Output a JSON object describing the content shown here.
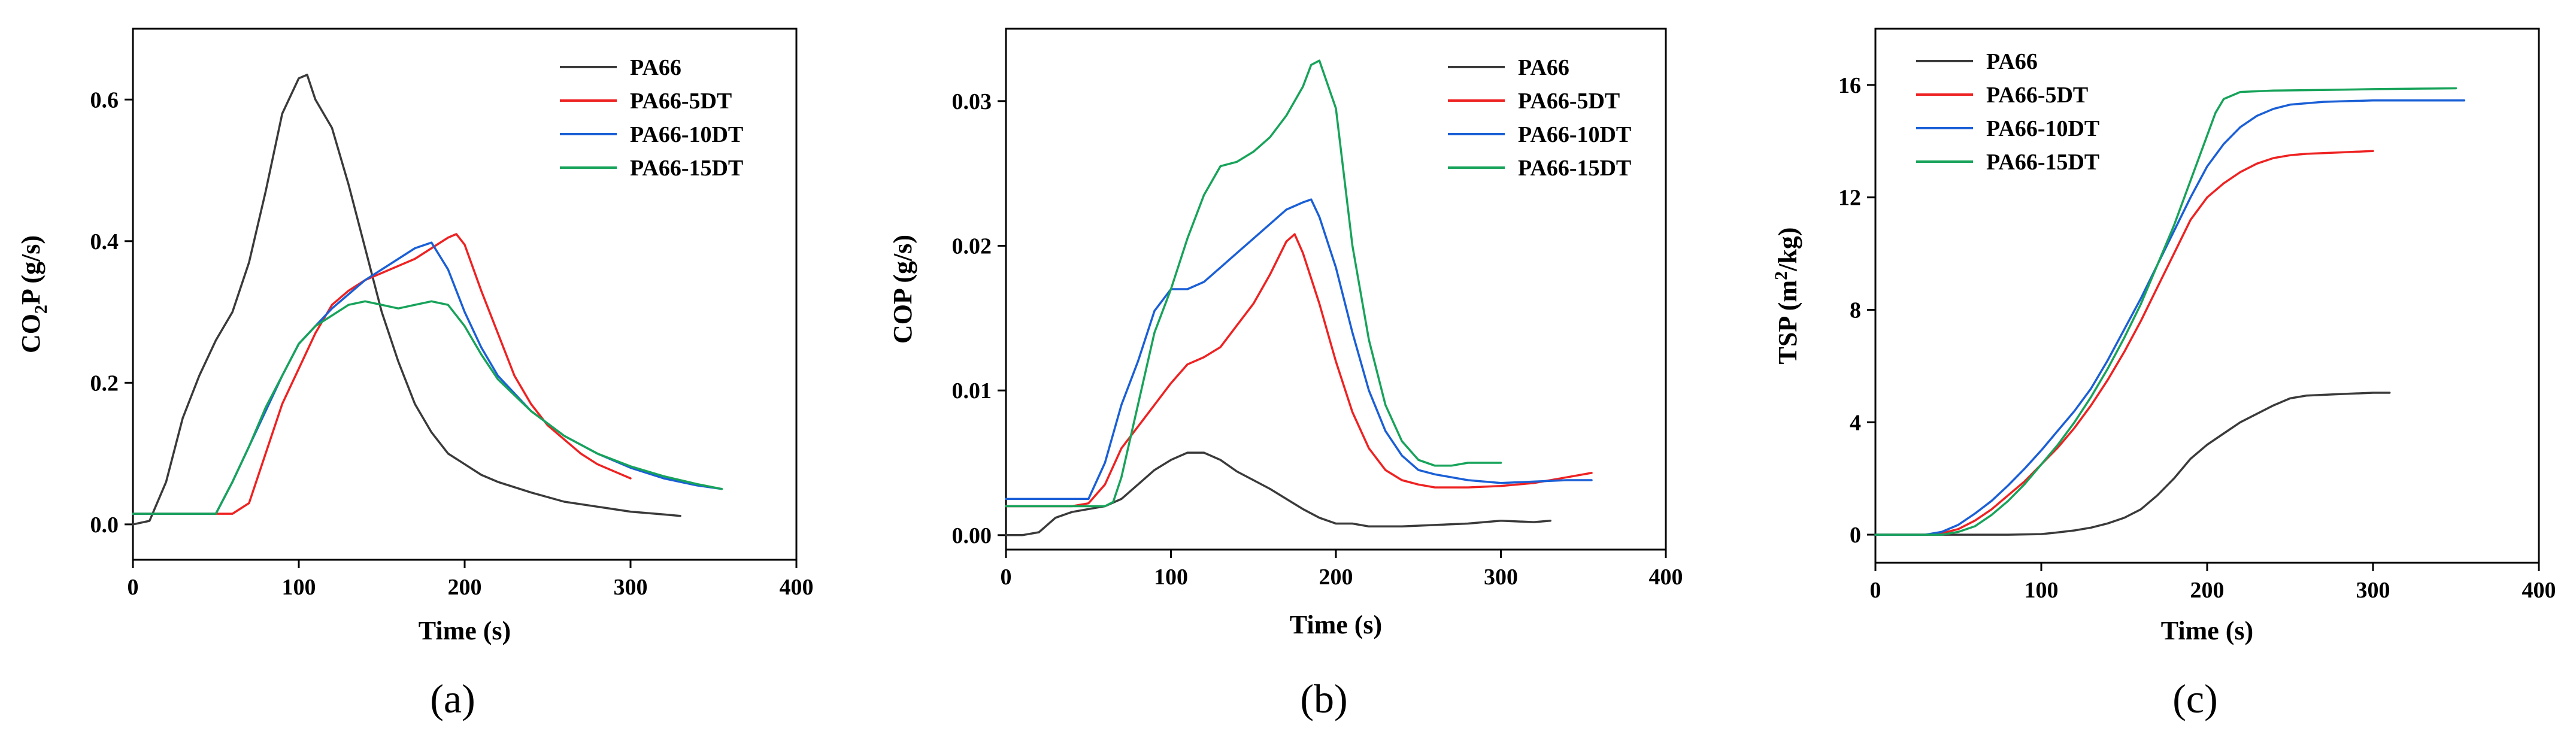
{
  "colors": {
    "PA66": "#3a3a3a",
    "PA66-5DT": "#ee2222",
    "PA66-10DT": "#1a5fd6",
    "PA66-15DT": "#17a35a"
  },
  "chart_data": [
    {
      "type": "line",
      "panel_label": "(a)",
      "xlabel": "Time (s)",
      "ylabel_main": "CO",
      "ylabel_sub": "2",
      "ylabel_tail": "P (g/s)",
      "xlim": [
        0,
        400
      ],
      "ylim": [
        -0.05,
        0.7
      ],
      "xticks": [
        0,
        100,
        200,
        300,
        400
      ],
      "yticks": [
        0.0,
        0.2,
        0.4,
        0.6
      ],
      "ytick_labels": [
        "0.0",
        "0.2",
        "0.4",
        "0.6"
      ],
      "legend": [
        "PA66",
        "PA66-5DT",
        "PA66-10DT",
        "PA66-15DT"
      ],
      "legend_position": "top-right",
      "series": [
        {
          "name": "PA66",
          "x": [
            0,
            10,
            20,
            30,
            40,
            50,
            60,
            70,
            80,
            90,
            100,
            105,
            110,
            120,
            130,
            140,
            150,
            160,
            170,
            180,
            190,
            200,
            210,
            220,
            240,
            260,
            280,
            300,
            320,
            330
          ],
          "y": [
            0.0,
            0.005,
            0.06,
            0.15,
            0.21,
            0.26,
            0.3,
            0.37,
            0.47,
            0.58,
            0.63,
            0.635,
            0.6,
            0.56,
            0.48,
            0.39,
            0.3,
            0.23,
            0.17,
            0.13,
            0.1,
            0.085,
            0.07,
            0.06,
            0.045,
            0.032,
            0.025,
            0.018,
            0.014,
            0.012
          ]
        },
        {
          "name": "PA66-5DT",
          "x": [
            0,
            60,
            70,
            80,
            90,
            100,
            110,
            120,
            130,
            140,
            150,
            160,
            170,
            180,
            190,
            195,
            200,
            210,
            220,
            230,
            240,
            250,
            260,
            270,
            280,
            290,
            300
          ],
          "y": [
            0.015,
            0.015,
            0.03,
            0.1,
            0.17,
            0.22,
            0.27,
            0.31,
            0.33,
            0.345,
            0.355,
            0.365,
            0.375,
            0.39,
            0.405,
            0.41,
            0.395,
            0.33,
            0.27,
            0.21,
            0.17,
            0.14,
            0.12,
            0.1,
            0.085,
            0.075,
            0.065
          ]
        },
        {
          "name": "PA66-10DT",
          "x": [
            0,
            50,
            60,
            70,
            80,
            90,
            100,
            110,
            120,
            130,
            140,
            150,
            160,
            170,
            180,
            190,
            200,
            210,
            220,
            240,
            260,
            280,
            300,
            320,
            340,
            355
          ],
          "y": [
            0.015,
            0.015,
            0.06,
            0.11,
            0.16,
            0.21,
            0.255,
            0.28,
            0.305,
            0.325,
            0.345,
            0.36,
            0.375,
            0.39,
            0.398,
            0.36,
            0.3,
            0.25,
            0.21,
            0.16,
            0.125,
            0.1,
            0.08,
            0.065,
            0.055,
            0.05
          ]
        },
        {
          "name": "PA66-15DT",
          "x": [
            0,
            50,
            60,
            70,
            80,
            90,
            100,
            110,
            120,
            130,
            140,
            150,
            160,
            170,
            180,
            190,
            200,
            210,
            220,
            240,
            260,
            280,
            300,
            320,
            340,
            355
          ],
          "y": [
            0.015,
            0.015,
            0.06,
            0.11,
            0.165,
            0.21,
            0.255,
            0.28,
            0.295,
            0.31,
            0.315,
            0.31,
            0.305,
            0.31,
            0.315,
            0.31,
            0.28,
            0.24,
            0.205,
            0.16,
            0.125,
            0.1,
            0.082,
            0.068,
            0.057,
            0.05
          ]
        }
      ]
    },
    {
      "type": "line",
      "panel_label": "(b)",
      "xlabel": "Time (s)",
      "ylabel_main": "COP (g/s)",
      "ylabel_sub": "",
      "ylabel_tail": "",
      "xlim": [
        0,
        400
      ],
      "ylim": [
        -0.001,
        0.035
      ],
      "xticks": [
        0,
        100,
        200,
        300,
        400
      ],
      "yticks": [
        0.0,
        0.01,
        0.02,
        0.03
      ],
      "ytick_labels": [
        "0.00",
        "0.01",
        "0.02",
        "0.03"
      ],
      "legend": [
        "PA66",
        "PA66-5DT",
        "PA66-10DT",
        "PA66-15DT"
      ],
      "legend_position": "top-right",
      "series": [
        {
          "name": "PA66",
          "x": [
            0,
            10,
            20,
            30,
            40,
            50,
            60,
            70,
            80,
            90,
            100,
            110,
            120,
            130,
            140,
            150,
            160,
            170,
            180,
            190,
            200,
            210,
            220,
            240,
            260,
            280,
            300,
            320,
            330
          ],
          "y": [
            0.0,
            0.0,
            0.0002,
            0.0012,
            0.0016,
            0.0018,
            0.002,
            0.0025,
            0.0035,
            0.0045,
            0.0052,
            0.0057,
            0.0057,
            0.0052,
            0.0044,
            0.0038,
            0.0032,
            0.0025,
            0.0018,
            0.0012,
            0.0008,
            0.0008,
            0.0006,
            0.0006,
            0.0007,
            0.0008,
            0.001,
            0.0009,
            0.001
          ]
        },
        {
          "name": "PA66-5DT",
          "x": [
            0,
            20,
            40,
            50,
            60,
            70,
            80,
            90,
            100,
            110,
            120,
            130,
            140,
            150,
            160,
            170,
            175,
            180,
            190,
            200,
            210,
            220,
            230,
            240,
            250,
            260,
            280,
            300,
            320,
            340,
            355
          ],
          "y": [
            0.002,
            0.002,
            0.002,
            0.0022,
            0.0035,
            0.006,
            0.0075,
            0.009,
            0.0105,
            0.0118,
            0.0123,
            0.013,
            0.0145,
            0.016,
            0.018,
            0.0203,
            0.0208,
            0.0195,
            0.016,
            0.012,
            0.0085,
            0.006,
            0.0045,
            0.0038,
            0.0035,
            0.0033,
            0.0033,
            0.0034,
            0.0036,
            0.004,
            0.0043
          ]
        },
        {
          "name": "PA66-10DT",
          "x": [
            0,
            20,
            40,
            50,
            60,
            70,
            80,
            90,
            100,
            110,
            120,
            130,
            140,
            150,
            160,
            170,
            180,
            185,
            190,
            200,
            210,
            220,
            230,
            240,
            250,
            260,
            280,
            300,
            320,
            340,
            355
          ],
          "y": [
            0.0025,
            0.0025,
            0.0025,
            0.0025,
            0.005,
            0.009,
            0.012,
            0.0155,
            0.017,
            0.017,
            0.0175,
            0.0185,
            0.0195,
            0.0205,
            0.0215,
            0.0225,
            0.023,
            0.0232,
            0.022,
            0.0185,
            0.014,
            0.01,
            0.0072,
            0.0055,
            0.0045,
            0.0042,
            0.0038,
            0.0036,
            0.0037,
            0.0038,
            0.0038
          ]
        },
        {
          "name": "PA66-15DT",
          "x": [
            0,
            60,
            65,
            70,
            80,
            90,
            100,
            110,
            120,
            130,
            140,
            150,
            160,
            170,
            180,
            185,
            190,
            200,
            210,
            220,
            230,
            240,
            250,
            260,
            270,
            280,
            300
          ],
          "y": [
            0.002,
            0.002,
            0.0023,
            0.004,
            0.009,
            0.014,
            0.017,
            0.0205,
            0.0235,
            0.0255,
            0.0258,
            0.0265,
            0.0275,
            0.029,
            0.031,
            0.0325,
            0.0328,
            0.0295,
            0.02,
            0.0135,
            0.009,
            0.0065,
            0.0052,
            0.0048,
            0.0048,
            0.005,
            0.005
          ]
        }
      ]
    },
    {
      "type": "line",
      "panel_label": "(c)",
      "xlabel": "Time (s)",
      "ylabel_main": "TSP (m",
      "ylabel_sup": "2",
      "ylabel_tail": "/kg)",
      "xlim": [
        0,
        400
      ],
      "ylim": [
        -1,
        18
      ],
      "xticks": [
        0,
        100,
        200,
        300,
        400
      ],
      "yticks": [
        0,
        4,
        8,
        12,
        16
      ],
      "ytick_labels": [
        "0",
        "4",
        "8",
        "12",
        "16"
      ],
      "legend": [
        "PA66",
        "PA66-5DT",
        "PA66-10DT",
        "PA66-15DT"
      ],
      "legend_position": "top-left",
      "series": [
        {
          "name": "PA66",
          "x": [
            0,
            60,
            80,
            100,
            110,
            120,
            130,
            140,
            150,
            160,
            170,
            180,
            190,
            200,
            210,
            220,
            230,
            240,
            250,
            260,
            280,
            300,
            310
          ],
          "y": [
            0,
            0,
            0,
            0.02,
            0.08,
            0.15,
            0.25,
            0.4,
            0.6,
            0.9,
            1.4,
            2.0,
            2.7,
            3.2,
            3.6,
            4.0,
            4.3,
            4.6,
            4.85,
            4.95,
            5.0,
            5.05,
            5.05
          ]
        },
        {
          "name": "PA66-5DT",
          "x": [
            0,
            30,
            40,
            50,
            60,
            70,
            80,
            90,
            100,
            110,
            120,
            130,
            140,
            150,
            160,
            170,
            180,
            190,
            200,
            210,
            220,
            230,
            240,
            250,
            260,
            280,
            300
          ],
          "y": [
            0,
            0,
            0.05,
            0.2,
            0.5,
            0.9,
            1.4,
            1.9,
            2.5,
            3.1,
            3.8,
            4.6,
            5.5,
            6.5,
            7.6,
            8.8,
            10.0,
            11.2,
            12.0,
            12.5,
            12.9,
            13.2,
            13.4,
            13.5,
            13.55,
            13.6,
            13.65
          ]
        },
        {
          "name": "PA66-10DT",
          "x": [
            0,
            30,
            40,
            50,
            60,
            70,
            80,
            90,
            100,
            110,
            120,
            130,
            140,
            150,
            160,
            170,
            180,
            190,
            200,
            210,
            220,
            230,
            240,
            250,
            270,
            300,
            330,
            355
          ],
          "y": [
            0,
            0,
            0.1,
            0.35,
            0.75,
            1.2,
            1.75,
            2.35,
            3.0,
            3.7,
            4.4,
            5.2,
            6.2,
            7.3,
            8.4,
            9.6,
            10.8,
            12.0,
            13.1,
            13.9,
            14.5,
            14.9,
            15.15,
            15.3,
            15.4,
            15.45,
            15.45,
            15.45
          ]
        },
        {
          "name": "PA66-15DT",
          "x": [
            0,
            40,
            50,
            60,
            70,
            80,
            90,
            100,
            110,
            120,
            130,
            140,
            150,
            160,
            170,
            180,
            190,
            200,
            205,
            210,
            220,
            240,
            270,
            300,
            330,
            350
          ],
          "y": [
            0,
            0,
            0.1,
            0.3,
            0.7,
            1.2,
            1.8,
            2.5,
            3.2,
            4.0,
            4.9,
            5.9,
            7.0,
            8.2,
            9.6,
            11.0,
            12.6,
            14.2,
            15.0,
            15.5,
            15.75,
            15.8,
            15.82,
            15.85,
            15.87,
            15.88
          ]
        }
      ]
    }
  ]
}
